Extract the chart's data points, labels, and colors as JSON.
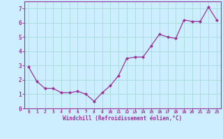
{
  "x": [
    0,
    1,
    2,
    3,
    4,
    5,
    6,
    7,
    8,
    9,
    10,
    11,
    12,
    13,
    14,
    15,
    16,
    17,
    18,
    19,
    20,
    21,
    22,
    23
  ],
  "y": [
    2.9,
    1.9,
    1.4,
    1.4,
    1.1,
    1.1,
    1.2,
    1.0,
    0.5,
    1.1,
    1.6,
    2.3,
    3.5,
    3.6,
    3.6,
    4.4,
    5.2,
    5.0,
    4.9,
    6.2,
    6.1,
    6.1,
    7.1,
    6.2
  ],
  "line_color": "#993399",
  "marker": "D",
  "marker_size": 2.0,
  "bg_color": "#cceeff",
  "grid_color": "#aadddd",
  "xlabel": "Windchill (Refroidissement éolien,°C)",
  "xlabel_color": "#993399",
  "tick_color": "#993399",
  "spine_color": "#993399",
  "ylim": [
    0,
    7.5
  ],
  "xlim": [
    -0.5,
    23.5
  ],
  "yticks": [
    0,
    1,
    2,
    3,
    4,
    5,
    6,
    7
  ],
  "xticks": [
    0,
    1,
    2,
    3,
    4,
    5,
    6,
    7,
    8,
    9,
    10,
    11,
    12,
    13,
    14,
    15,
    16,
    17,
    18,
    19,
    20,
    21,
    22,
    23
  ]
}
